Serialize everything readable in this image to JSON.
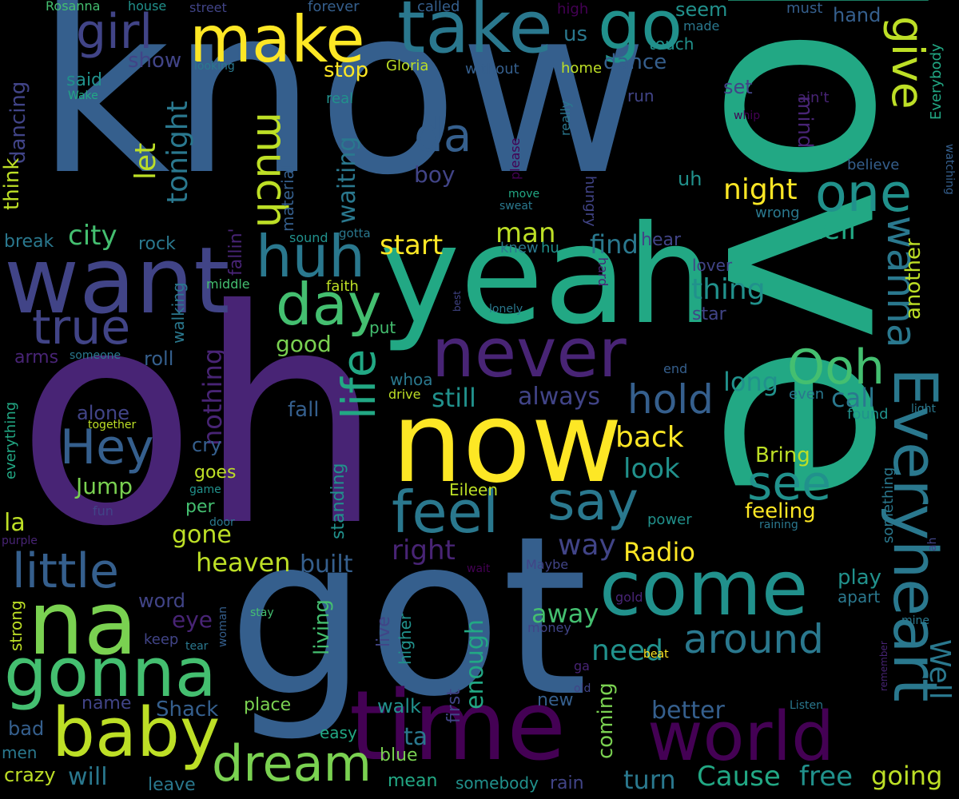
{
  "palette": {
    "background": "#000000",
    "dark_purple": "#440154",
    "purple": "#482475",
    "indigo": "#414487",
    "blue": "#355f8d",
    "teal_blue": "#2a788e",
    "teal": "#21918c",
    "green_teal": "#22a884",
    "green": "#44bf70",
    "light_green": "#7ad151",
    "yellow": "#fde725",
    "yellow_green": "#bddf26"
  },
  "words": [
    {
      "text": "know"
    },
    {
      "text": "love"
    },
    {
      "text": "oh"
    },
    {
      "text": "got"
    },
    {
      "text": "yeah"
    },
    {
      "text": "now"
    },
    {
      "text": "want"
    },
    {
      "text": "take"
    },
    {
      "text": "make"
    },
    {
      "text": "go"
    },
    {
      "text": "time"
    },
    {
      "text": "na"
    },
    {
      "text": "gonna"
    },
    {
      "text": "baby"
    },
    {
      "text": "come"
    },
    {
      "text": "never"
    },
    {
      "text": "world"
    },
    {
      "text": "Everyheart"
    },
    {
      "text": "wanna"
    },
    {
      "text": "give"
    },
    {
      "text": "one"
    },
    {
      "text": "huh"
    },
    {
      "text": "day"
    },
    {
      "text": "much"
    },
    {
      "text": "girl"
    },
    {
      "text": "true"
    },
    {
      "text": "little"
    },
    {
      "text": "Hey"
    },
    {
      "text": "feel"
    },
    {
      "text": "say"
    },
    {
      "text": "see"
    },
    {
      "text": "Ooh"
    },
    {
      "text": "life"
    },
    {
      "text": "da"
    },
    {
      "text": "dream"
    },
    {
      "text": "around"
    },
    {
      "text": "hold"
    },
    {
      "text": "Cause"
    },
    {
      "text": "free"
    },
    {
      "text": "going"
    },
    {
      "text": "turn"
    },
    {
      "text": "Well"
    },
    {
      "text": "night"
    },
    {
      "text": "tell"
    },
    {
      "text": "thing"
    },
    {
      "text": "tonight"
    },
    {
      "text": "let"
    },
    {
      "text": "city"
    },
    {
      "text": "start"
    },
    {
      "text": "man"
    },
    {
      "text": "find"
    },
    {
      "text": "back"
    },
    {
      "text": "look"
    },
    {
      "text": "way"
    },
    {
      "text": "right"
    },
    {
      "text": "still"
    },
    {
      "text": "always"
    },
    {
      "text": "Radio"
    },
    {
      "text": "heaven"
    },
    {
      "text": "gone"
    },
    {
      "text": "Jump"
    },
    {
      "text": "good"
    },
    {
      "text": "nothing"
    },
    {
      "text": "waiting"
    },
    {
      "text": "seem"
    },
    {
      "text": "dance"
    },
    {
      "text": "stop"
    },
    {
      "text": "show"
    },
    {
      "text": "dancing"
    },
    {
      "text": "think"
    },
    {
      "text": "said"
    },
    {
      "text": "us"
    },
    {
      "text": "boy"
    },
    {
      "text": "mind"
    },
    {
      "text": "set"
    },
    {
      "text": "another"
    },
    {
      "text": "long"
    },
    {
      "text": "call"
    },
    {
      "text": "need"
    },
    {
      "text": "away"
    },
    {
      "text": "enough"
    },
    {
      "text": "better"
    },
    {
      "text": "coming"
    },
    {
      "text": "will"
    },
    {
      "text": "eye"
    },
    {
      "text": "word"
    },
    {
      "text": "built"
    },
    {
      "text": "fall"
    },
    {
      "text": "cry"
    },
    {
      "text": "alone"
    },
    {
      "text": "roll"
    },
    {
      "text": "walk"
    },
    {
      "text": "ta"
    },
    {
      "text": "Bring"
    },
    {
      "text": "feeling"
    },
    {
      "text": "play"
    },
    {
      "text": "apart"
    },
    {
      "text": "place"
    },
    {
      "text": "Shack"
    },
    {
      "text": "name"
    },
    {
      "text": "per"
    },
    {
      "text": "goes"
    },
    {
      "text": "la"
    },
    {
      "text": "living"
    },
    {
      "text": "live"
    },
    {
      "text": "higher"
    },
    {
      "text": "new"
    },
    {
      "text": "first"
    },
    {
      "text": "blue"
    },
    {
      "text": "easy"
    },
    {
      "text": "mean"
    },
    {
      "text": "somebody"
    },
    {
      "text": "rain"
    },
    {
      "text": "crazy"
    },
    {
      "text": "leave"
    },
    {
      "text": "bad"
    },
    {
      "text": "men"
    },
    {
      "text": "Eileen"
    },
    {
      "text": "standing"
    },
    {
      "text": "everything"
    },
    {
      "text": "strong"
    },
    {
      "text": "arms"
    },
    {
      "text": "break"
    },
    {
      "text": "rock"
    },
    {
      "text": "material"
    },
    {
      "text": "fallin'"
    },
    {
      "text": "walking"
    },
    {
      "text": "middle"
    },
    {
      "text": "sound"
    },
    {
      "text": "gotta"
    },
    {
      "text": "faith"
    },
    {
      "text": "put"
    },
    {
      "text": "whoa"
    },
    {
      "text": "drive"
    },
    {
      "text": "knew"
    },
    {
      "text": "hu"
    },
    {
      "text": "hungry"
    },
    {
      "text": "wrong"
    },
    {
      "text": "hear"
    },
    {
      "text": "lover"
    },
    {
      "text": "hard"
    },
    {
      "text": "star"
    },
    {
      "text": "end"
    },
    {
      "text": "even"
    },
    {
      "text": "found"
    },
    {
      "text": "light"
    },
    {
      "text": "something"
    },
    {
      "text": "power"
    },
    {
      "text": "raining"
    },
    {
      "text": "ah"
    },
    {
      "text": "Everybody"
    },
    {
      "text": "watching"
    },
    {
      "text": "believe"
    },
    {
      "text": "ain't"
    },
    {
      "text": "whip"
    },
    {
      "text": "hand"
    },
    {
      "text": "must"
    },
    {
      "text": "high"
    },
    {
      "text": "made"
    },
    {
      "text": "touch"
    },
    {
      "text": "home"
    },
    {
      "text": "really"
    },
    {
      "text": "run"
    },
    {
      "text": "please"
    },
    {
      "text": "uh"
    },
    {
      "text": "move"
    },
    {
      "text": "sweat"
    },
    {
      "text": "without"
    },
    {
      "text": "Gloria"
    },
    {
      "text": "real"
    },
    {
      "text": "called"
    },
    {
      "text": "forever"
    },
    {
      "text": "street"
    },
    {
      "text": "house"
    },
    {
      "text": "Rosanna"
    },
    {
      "text": "looking"
    },
    {
      "text": "Wake"
    },
    {
      "text": "someone"
    },
    {
      "text": "together"
    },
    {
      "text": "game"
    },
    {
      "text": "door"
    },
    {
      "text": "fun"
    },
    {
      "text": "purple"
    },
    {
      "text": "stay"
    },
    {
      "text": "tear"
    },
    {
      "text": "woman"
    },
    {
      "text": "keep"
    },
    {
      "text": "money"
    },
    {
      "text": "ga"
    },
    {
      "text": "old"
    },
    {
      "text": "gold"
    },
    {
      "text": "beat"
    },
    {
      "text": "remember"
    },
    {
      "text": "mine"
    },
    {
      "text": "Listen"
    },
    {
      "text": "wait"
    },
    {
      "text": "Maybe"
    },
    {
      "text": "lonely"
    },
    {
      "text": "best"
    }
  ]
}
